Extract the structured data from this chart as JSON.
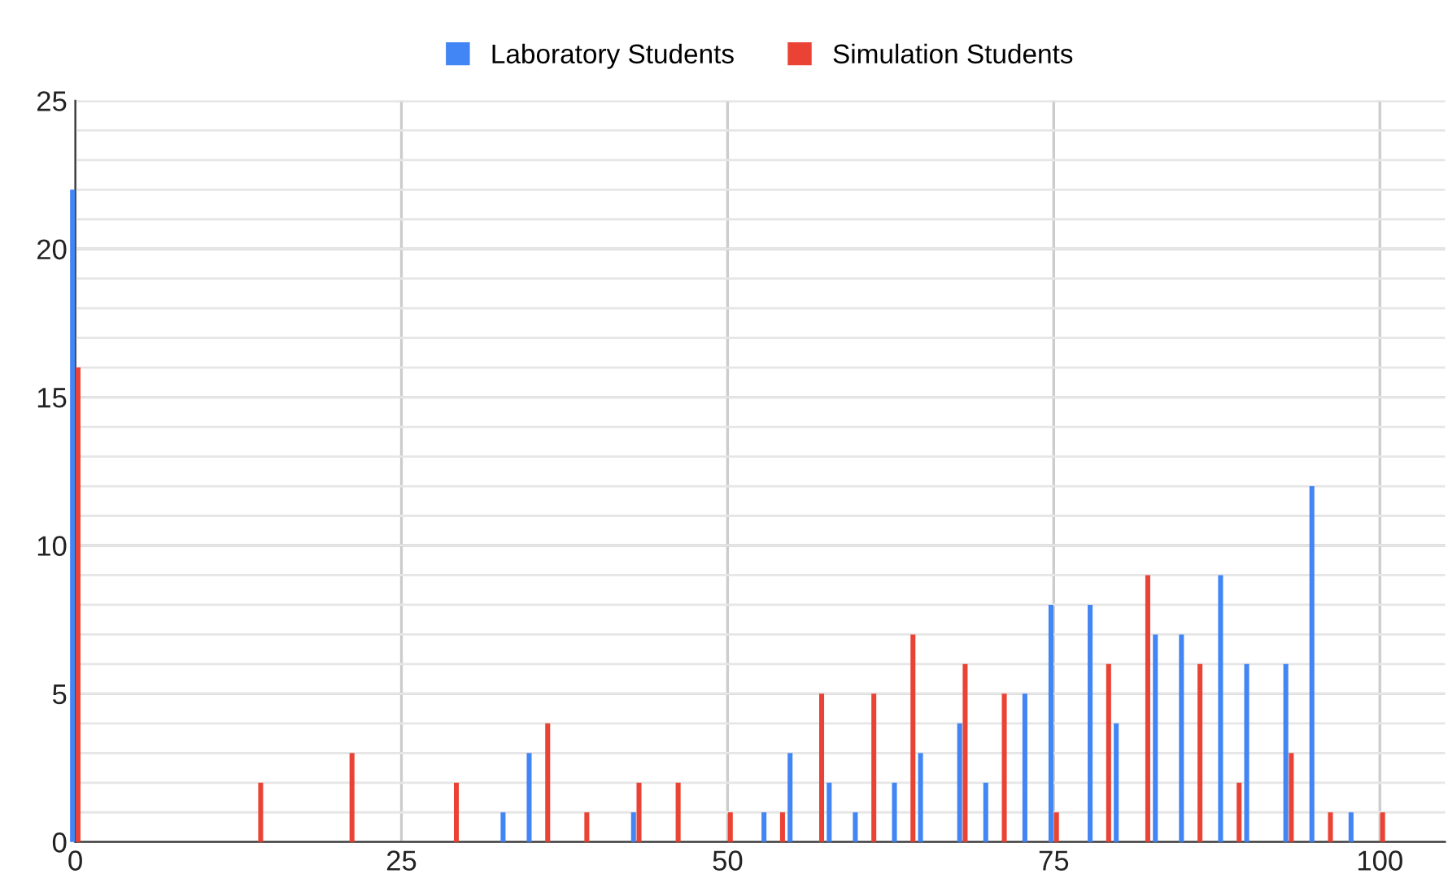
{
  "chart_data": {
    "type": "bar",
    "series": [
      {
        "name": "Laboratory Students",
        "color": "#4285f4",
        "x": [
          0,
          33,
          35,
          43,
          53,
          55,
          58,
          60,
          63,
          65,
          68,
          70,
          73,
          75,
          78,
          80,
          83,
          85,
          88,
          90,
          93,
          95,
          98
        ],
        "values": [
          22,
          1,
          3,
          1,
          1,
          3,
          2,
          1,
          2,
          3,
          4,
          2,
          5,
          8,
          8,
          4,
          7,
          7,
          9,
          6,
          6,
          12,
          1
        ]
      },
      {
        "name": "Simulation Students",
        "color": "#ea4335",
        "x": [
          0,
          14,
          21,
          29,
          36,
          39,
          43,
          46,
          50,
          54,
          57,
          61,
          64,
          68,
          71,
          75,
          79,
          82,
          86,
          89,
          93,
          96,
          100
        ],
        "values": [
          16,
          2,
          3,
          2,
          4,
          1,
          2,
          2,
          1,
          1,
          5,
          5,
          7,
          6,
          5,
          1,
          6,
          9,
          6,
          2,
          3,
          1,
          1
        ]
      }
    ],
    "xlim": [
      0,
      105
    ],
    "xticks": [
      0,
      25,
      50,
      75,
      100
    ],
    "ylim": [
      0,
      25
    ],
    "yticks": [
      0,
      5,
      10,
      15,
      20,
      25
    ],
    "grid": true,
    "legend": "top"
  }
}
